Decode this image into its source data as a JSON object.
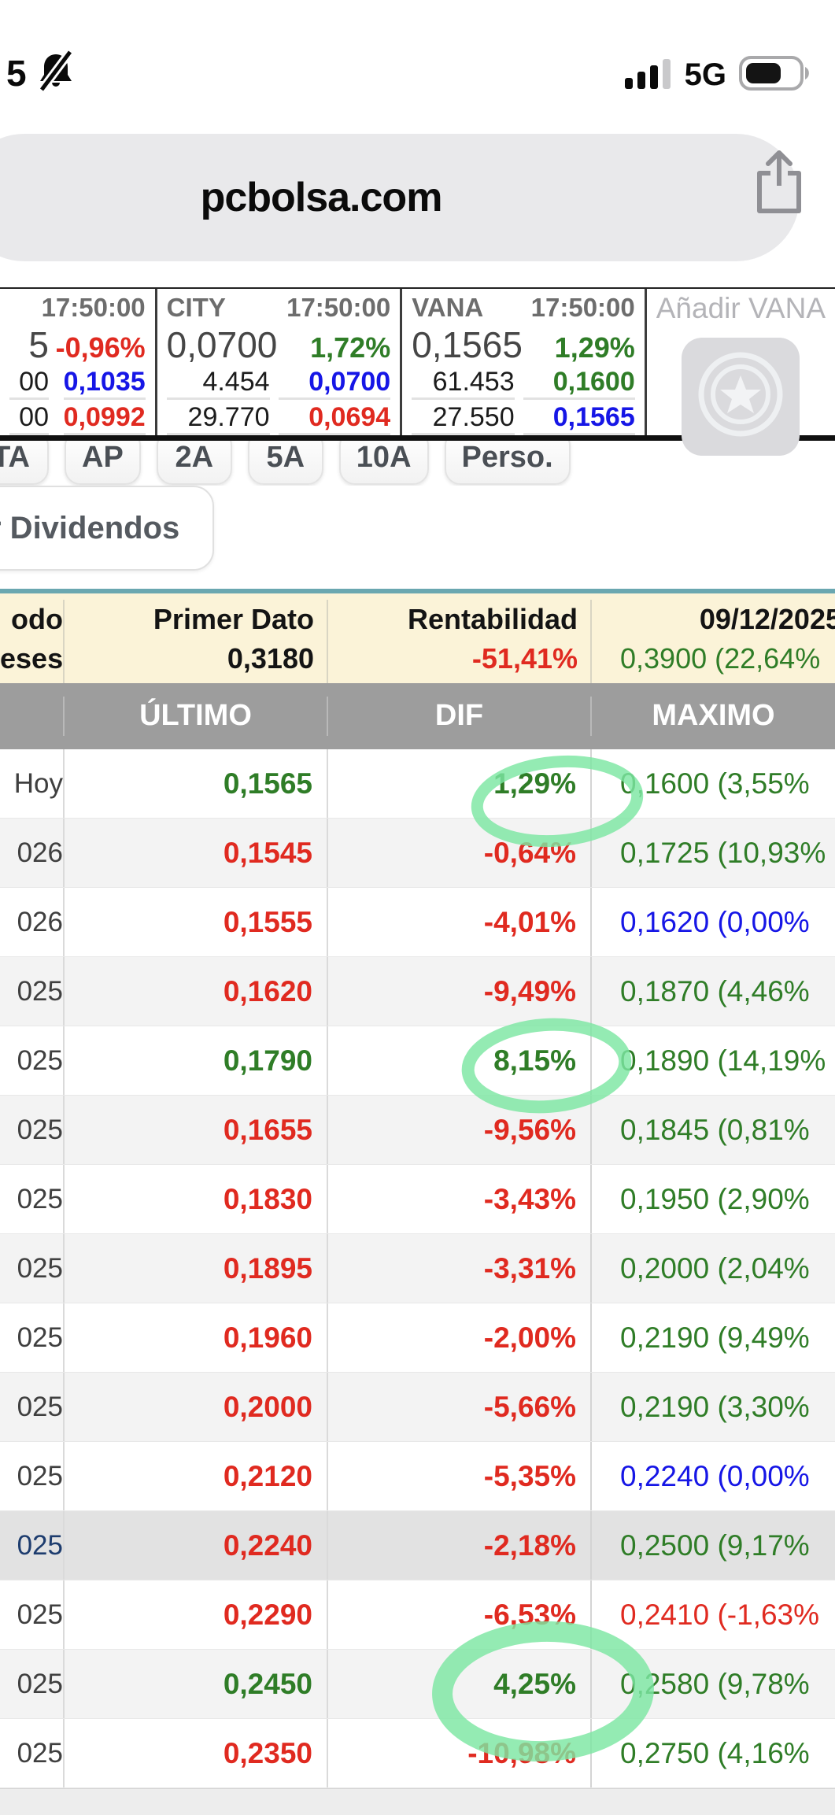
{
  "status_bar": {
    "time": "5",
    "network": "5G"
  },
  "icons": {
    "bell-slash-icon": "notifications silenced",
    "signal-icon": "cellular signal 3 of 4 bars",
    "battery-icon": "battery about 55%",
    "share-icon": "iOS share (box with up arrow)",
    "star-badge-icon": "favorite/star badge"
  },
  "colors": {
    "green": "#2f7d27",
    "red": "#e02a20",
    "blue": "#1616e6",
    "navy": "#1d3c6e",
    "header_yellow": "#fbf3d8",
    "header_gray": "#9d9d9d",
    "teal_accent": "#6aa7b0",
    "marker_green": "#7de7a3"
  },
  "url_bar": {
    "url": "pcbolsa.com"
  },
  "ticker": {
    "add_label": "Añadir VANA",
    "panels": [
      {
        "name": "",
        "time": "17:50:00",
        "rows": [
          {
            "l": "5",
            "r": "-0,96%",
            "rc": "r",
            "big": true
          },
          {
            "l": "00",
            "r": "0,1035",
            "rc": "b"
          },
          {
            "l": "00",
            "r": "0,0992",
            "rc": "r"
          }
        ]
      },
      {
        "name": "CITY",
        "time": "17:50:00",
        "rows": [
          {
            "l": "0,0700",
            "r": "1,72%",
            "rc": "g",
            "big": true
          },
          {
            "l": "4.454",
            "r": "0,0700",
            "rc": "b"
          },
          {
            "l": "29.770",
            "r": "0,0694",
            "rc": "r"
          }
        ]
      },
      {
        "name": "VANA",
        "time": "17:50:00",
        "rows": [
          {
            "l": "0,1565",
            "r": "1,29%",
            "rc": "g",
            "big": true
          },
          {
            "l": "61.453",
            "r": "0,1600",
            "rc": "g"
          },
          {
            "l": "27.550",
            "r": "0,1565",
            "rc": "b"
          }
        ]
      }
    ]
  },
  "period_tabs": [
    "TA",
    "AP",
    "2A",
    "5A",
    "10A",
    "Perso."
  ],
  "dividends_button": {
    "label": "r Dividendos"
  },
  "summary": {
    "period_label_line1": "odo",
    "period_label_line2": "eses",
    "primer_dato_label": "Primer Dato",
    "primer_dato_value": "0,3180",
    "rentabilidad_label": "Rentabilidad",
    "rentabilidad_value": "-51,41%",
    "date_label": "09/12/2025",
    "date_value": "0,3900 (22,64%"
  },
  "table": {
    "headers": [
      "",
      "ÚLTIMO",
      "DIF",
      "MAXIMO"
    ],
    "rows": [
      {
        "p": "Hoy",
        "u": "0,1565",
        "uc": "g",
        "d": "1,29%",
        "dc": "g",
        "m": "0,1600 (3,55%",
        "mc": "g",
        "circled": true
      },
      {
        "p": "026",
        "u": "0,1545",
        "uc": "r",
        "d": "-0,64%",
        "dc": "r",
        "m": "0,1725 (10,93%",
        "mc": "g"
      },
      {
        "p": "026",
        "u": "0,1555",
        "uc": "r",
        "d": "-4,01%",
        "dc": "r",
        "m": "0,1620 (0,00%",
        "mc": "b"
      },
      {
        "p": "025",
        "u": "0,1620",
        "uc": "r",
        "d": "-9,49%",
        "dc": "r",
        "m": "0,1870 (4,46%",
        "mc": "g"
      },
      {
        "p": "025",
        "u": "0,1790",
        "uc": "g",
        "d": "8,15%",
        "dc": "g",
        "m": "0,1890 (14,19%",
        "mc": "g",
        "circled": true
      },
      {
        "p": "025",
        "u": "0,1655",
        "uc": "r",
        "d": "-9,56%",
        "dc": "r",
        "m": "0,1845 (0,81%",
        "mc": "g"
      },
      {
        "p": "025",
        "u": "0,1830",
        "uc": "r",
        "d": "-3,43%",
        "dc": "r",
        "m": "0,1950 (2,90%",
        "mc": "g"
      },
      {
        "p": "025",
        "u": "0,1895",
        "uc": "r",
        "d": "-3,31%",
        "dc": "r",
        "m": "0,2000 (2,04%",
        "mc": "g"
      },
      {
        "p": "025",
        "u": "0,1960",
        "uc": "r",
        "d": "-2,00%",
        "dc": "r",
        "m": "0,2190 (9,49%",
        "mc": "g"
      },
      {
        "p": "025",
        "u": "0,2000",
        "uc": "r",
        "d": "-5,66%",
        "dc": "r",
        "m": "0,2190 (3,30%",
        "mc": "g"
      },
      {
        "p": "025",
        "u": "0,2120",
        "uc": "r",
        "d": "-5,35%",
        "dc": "r",
        "m": "0,2240 (0,00%",
        "mc": "b"
      },
      {
        "p": "025",
        "u": "0,2240",
        "uc": "r",
        "d": "-2,18%",
        "dc": "r",
        "m": "0,2500 (9,17%",
        "mc": "g",
        "sel": true
      },
      {
        "p": "025",
        "u": "0,2290",
        "uc": "r",
        "d": "-6,53%",
        "dc": "r",
        "m": "0,2410 (-1,63%",
        "mc": "r"
      },
      {
        "p": "025",
        "u": "0,2450",
        "uc": "g",
        "d": "4,25%",
        "dc": "g",
        "m": "0,2580 (9,78%",
        "mc": "g",
        "circled": true
      },
      {
        "p": "025",
        "u": "0,2350",
        "uc": "r",
        "d": "-10,98%",
        "dc": "r",
        "m": "0,2750 (4,16%",
        "mc": "g"
      }
    ]
  }
}
